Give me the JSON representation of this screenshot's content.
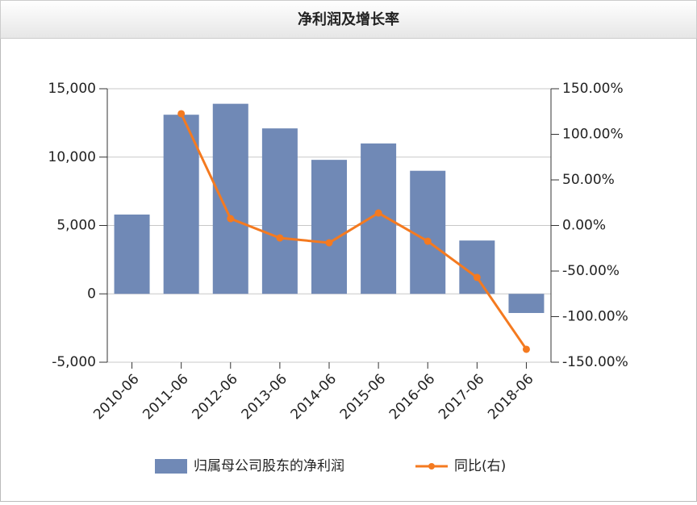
{
  "chart_data": {
    "type": "bar-line",
    "title": "净利润及增长率",
    "categories": [
      "2010-06",
      "2011-06",
      "2012-06",
      "2013-06",
      "2014-06",
      "2015-06",
      "2016-06",
      "2017-06",
      "2018-06"
    ],
    "series": [
      {
        "name": "归属母公司股东的净利润",
        "type": "bar",
        "color": "#7089b6",
        "values": [
          5800,
          13100,
          13900,
          12100,
          9800,
          11000,
          9000,
          3900,
          -1400
        ]
      },
      {
        "name": "同比(右)",
        "type": "line",
        "axis": "y2",
        "color": "#f47a20",
        "values": [
          null,
          122.6,
          7.5,
          -13.7,
          -19,
          13.7,
          -17.3,
          -57,
          -135.8
        ]
      }
    ],
    "ylim": [
      -5000,
      15000
    ],
    "yticks": [
      {
        "value": -5000,
        "label": "-5,000"
      },
      0,
      {
        "value": 5000,
        "label": "5,000"
      },
      {
        "value": 10000,
        "label": "10,000"
      },
      {
        "value": 15000,
        "label": "15,000"
      }
    ],
    "y2lim": [
      -150,
      150
    ],
    "y2ticks": [
      {
        "value": -150,
        "label": "-150.00%"
      },
      {
        "value": -100,
        "label": "-100.00%"
      },
      {
        "value": -50,
        "label": "-50.00%"
      },
      {
        "value": 0,
        "label": "0.00%"
      },
      {
        "value": 50,
        "label": "50.00%"
      },
      {
        "value": 100,
        "label": "100.00%"
      },
      {
        "value": 150,
        "label": "150.00%"
      }
    ],
    "grid": true
  }
}
